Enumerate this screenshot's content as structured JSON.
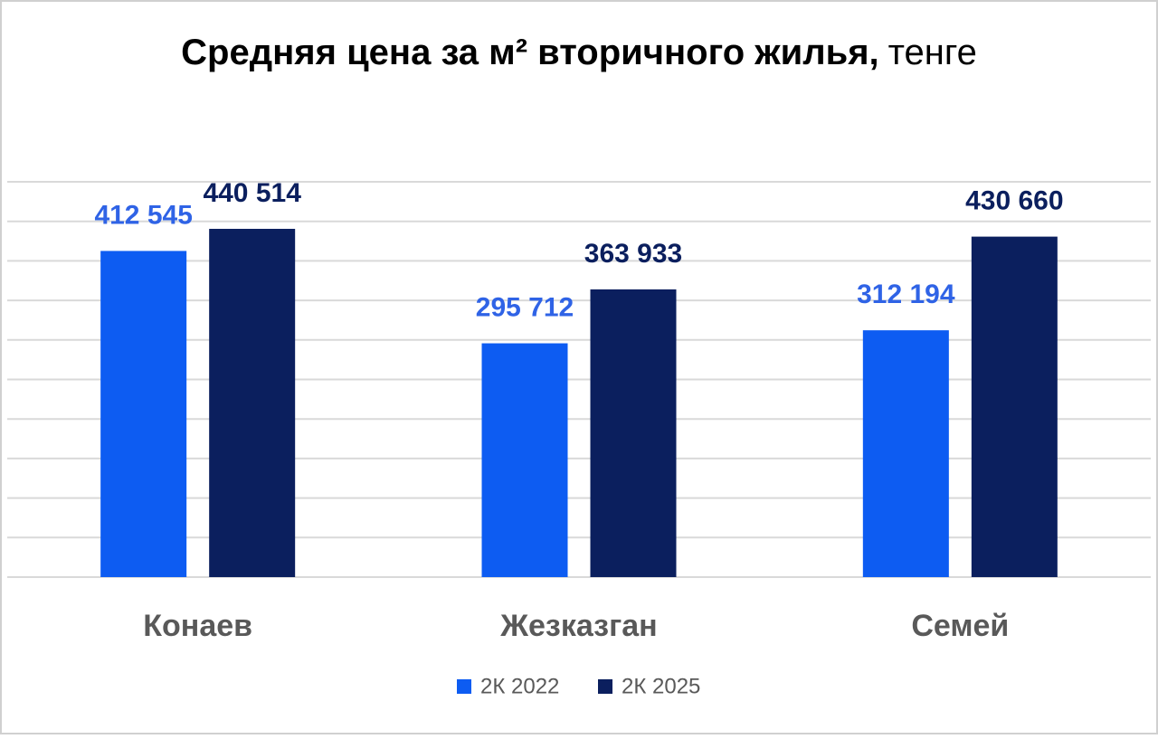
{
  "chart_data": {
    "type": "bar",
    "title": "Средняя цена за м² вторичного жилья,",
    "title_unit": "тенге",
    "categories": [
      "Конаев",
      "Жезказган",
      "Семей"
    ],
    "series": [
      {
        "name": "2К 2022",
        "color": "#0d5cf2",
        "values": [
          412545,
          295712,
          312194
        ],
        "value_labels": [
          "412 545",
          "295 712",
          "312 194"
        ]
      },
      {
        "name": "2К 2025",
        "color": "#0b1f5e",
        "values": [
          440514,
          363933,
          430660
        ],
        "value_labels": [
          "440 514",
          "363 933",
          "430 660"
        ]
      }
    ],
    "ylim": [
      0,
      500000
    ],
    "yticks": [
      0,
      50000,
      100000,
      150000,
      200000,
      250000,
      300000,
      350000,
      400000,
      450000,
      500000
    ],
    "grid": true,
    "legend": "bottom"
  }
}
